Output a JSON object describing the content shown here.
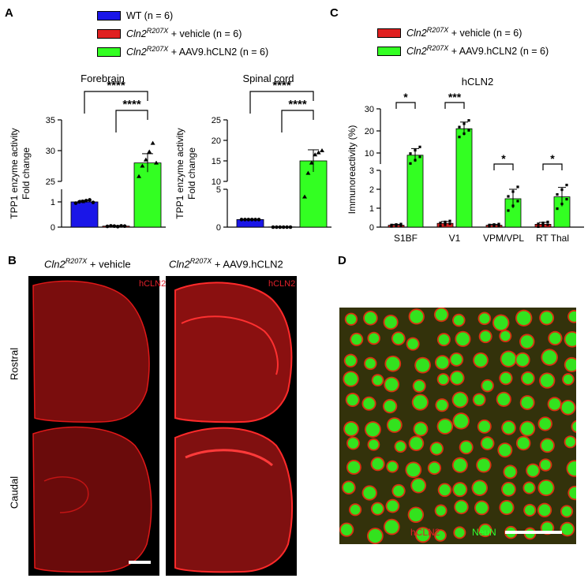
{
  "panels": {
    "A": "A",
    "B": "B",
    "C": "C",
    "D": "D"
  },
  "colors": {
    "wt": "#1a16e8",
    "vehicle": "#e02020",
    "aav": "#33ff22"
  },
  "legend_A": {
    "items": [
      {
        "pre": "WT (n = 6)",
        "gene": "",
        "sup": "",
        "post": "",
        "color": "#1a16e8"
      },
      {
        "pre": "",
        "gene": "Cln2",
        "sup": "R207X",
        "post": " + vehicle (n = 6)",
        "color": "#e02020"
      },
      {
        "pre": "",
        "gene": "Cln2",
        "sup": "R207X",
        "post": " + AAV9.hCLN2 (n = 6)",
        "color": "#33ff22"
      }
    ]
  },
  "legend_C": {
    "items": [
      {
        "gene": "Cln2",
        "sup": "R207X",
        "post": " + vehicle (n = 6)",
        "color": "#e02020"
      },
      {
        "gene": "Cln2",
        "sup": "R207X",
        "post": " + AAV9.hCLN2 (n = 6)",
        "color": "#33ff22"
      }
    ]
  },
  "chart_data": [
    {
      "type": "bar",
      "title": "Forebrain",
      "ylabel": "TPP1 enzyme activity\nFold change",
      "axis_break": true,
      "ylim_lower": [
        0,
        1.5
      ],
      "ylim_upper": [
        25,
        35
      ],
      "ticks_lower": [
        "0",
        "1"
      ],
      "ticks_upper": [
        "25",
        "30",
        "35"
      ],
      "categories": [
        "WT",
        "Cln2R207X + vehicle",
        "Cln2R207X + AAV9.hCLN2"
      ],
      "values": [
        1.0,
        0.04,
        28.0
      ],
      "errors": [
        0.06,
        0.02,
        1.5
      ],
      "points": [
        [
          0.95,
          1.0,
          1.02,
          1.05,
          1.08,
          0.98
        ],
        [
          0.03,
          0.05,
          0.04,
          0.02,
          0.05,
          0.04
        ],
        [
          25.8,
          27.5,
          28.5,
          29.8,
          31.2,
          28.0
        ]
      ],
      "significance": [
        {
          "from": 0,
          "to": 2,
          "label": "****"
        },
        {
          "from": 1,
          "to": 2,
          "label": "****"
        }
      ]
    },
    {
      "type": "bar",
      "title": "Spinal cord",
      "ylabel": "TPP1 enzyme activity\nFold change",
      "axis_break": true,
      "ylim_lower": [
        0,
        5
      ],
      "ylim_upper": [
        10,
        25
      ],
      "ticks_lower": [
        "0",
        "5"
      ],
      "ticks_upper": [
        "10",
        "15",
        "20",
        "25"
      ],
      "categories": [
        "WT",
        "Cln2R207X + vehicle",
        "Cln2R207X + AAV9.hCLN2"
      ],
      "values": [
        1.0,
        0.02,
        15.0
      ],
      "errors": [
        0.05,
        0.01,
        2.7
      ],
      "points": [
        [
          1.0,
          1.0,
          1.0,
          1.0,
          1.0,
          1.0
        ],
        [
          0.0,
          0.0,
          0.0,
          0.0,
          0.0,
          0.0
        ],
        [
          4.0,
          12.0,
          14.5,
          16.5,
          17.0,
          17.5
        ]
      ],
      "significance": [
        {
          "from": 0,
          "to": 2,
          "label": "****"
        },
        {
          "from": 1,
          "to": 2,
          "label": "****"
        }
      ]
    },
    {
      "type": "bar",
      "title": "hCLN2",
      "ylabel": "Immunoreactivity (%)",
      "axis_break": true,
      "ylim_lower": [
        0,
        3
      ],
      "ylim_upper": [
        5,
        30
      ],
      "ticks_lower": [
        "0",
        "1",
        "2",
        "3"
      ],
      "ticks_upper": [
        "10",
        "20",
        "30"
      ],
      "categories": [
        "S1BF",
        "V1",
        "VPM/VPL",
        "RT Thal"
      ],
      "series": [
        {
          "name": "Cln2R207X + vehicle",
          "values": [
            0.1,
            0.2,
            0.1,
            0.15
          ],
          "errors": [
            0.05,
            0.1,
            0.05,
            0.1
          ]
        },
        {
          "name": "Cln2R207X + AAV9.hCLN2",
          "values": [
            9.0,
            21.0,
            1.5,
            1.6
          ],
          "errors": [
            3.0,
            3.0,
            0.5,
            0.5
          ]
        }
      ],
      "significance": [
        {
          "category": 0,
          "label": "*"
        },
        {
          "category": 1,
          "label": "***"
        },
        {
          "category": 2,
          "label": "*"
        },
        {
          "category": 3,
          "label": "*"
        }
      ]
    }
  ],
  "panel_B": {
    "col_labels": [
      {
        "gene": "Cln2",
        "sup": "R207X",
        "post": "  + vehicle"
      },
      {
        "gene": "Cln2",
        "sup": "R207X",
        "post": " + AAV9.hCLN2"
      }
    ],
    "row_labels": [
      "Rostral",
      "Caudal"
    ],
    "stain_label": "hCLN2"
  },
  "panel_D": {
    "label_red": "hCLN2",
    "label_green": "NeuN"
  }
}
